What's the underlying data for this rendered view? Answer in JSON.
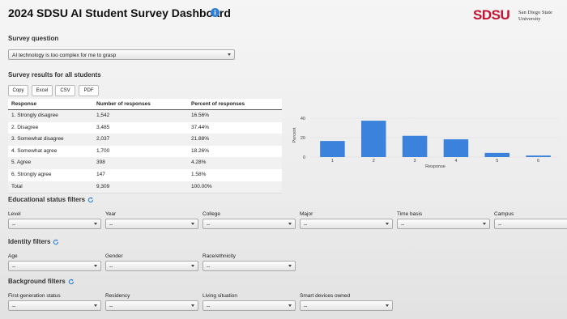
{
  "header": {
    "title": "2024 SDSU AI Student Survey Dashboard",
    "logo": "SDSU",
    "logo_sub": [
      "San Diego State",
      "University"
    ]
  },
  "survey_question": {
    "label": "Survey question",
    "selected": "AI technology is too complex for me to grasp"
  },
  "results": {
    "title": "Survey results for all students",
    "buttons": [
      "Copy",
      "Excel",
      "CSV",
      "PDF"
    ],
    "table": {
      "columns": [
        "Response",
        "Number of responses",
        "Percent of responses"
      ],
      "rows": [
        [
          "1. Strongly disagree",
          "1,542",
          "16.56%"
        ],
        [
          "2. Disagree",
          "3,485",
          "37.44%"
        ],
        [
          "3. Somewhat disagree",
          "2,037",
          "21.88%"
        ],
        [
          "4. Somewhat agree",
          "1,700",
          "18.26%"
        ],
        [
          "5. Agree",
          "398",
          "4.28%"
        ],
        [
          "6. Strongly agree",
          "147",
          "1.58%"
        ],
        [
          "Total",
          "9,309",
          "100.00%"
        ]
      ]
    }
  },
  "chart_data": {
    "type": "bar",
    "categories": [
      "1",
      "2",
      "3",
      "4",
      "5",
      "6"
    ],
    "values": [
      16.56,
      37.44,
      21.88,
      18.26,
      4.28,
      1.58
    ],
    "color": "#3b82dc",
    "x_label": "Response",
    "y_label": "Percent",
    "ylim": [
      0,
      45
    ],
    "yticks": [
      0,
      20,
      40
    ],
    "grid": true
  },
  "filters": [
    {
      "title": "Educational status filters",
      "fields": [
        {
          "label": "Level",
          "value": "--"
        },
        {
          "label": "Year",
          "value": "--"
        },
        {
          "label": "College",
          "value": "--"
        },
        {
          "label": "Major",
          "value": "--"
        },
        {
          "label": "Time basis",
          "value": "--"
        },
        {
          "label": "Campus",
          "value": "--"
        }
      ]
    },
    {
      "title": "Identity filters",
      "fields": [
        {
          "label": "Age",
          "value": "--"
        },
        {
          "label": "Gender",
          "value": "--"
        },
        {
          "label": "Race/ethnicity",
          "value": "--"
        }
      ]
    },
    {
      "title": "Background filters",
      "fields": [
        {
          "label": "First-generation status",
          "value": "--"
        },
        {
          "label": "Residency",
          "value": "--"
        },
        {
          "label": "Living situation",
          "value": "--"
        },
        {
          "label": "Smart devices owned",
          "value": "--"
        }
      ]
    }
  ]
}
